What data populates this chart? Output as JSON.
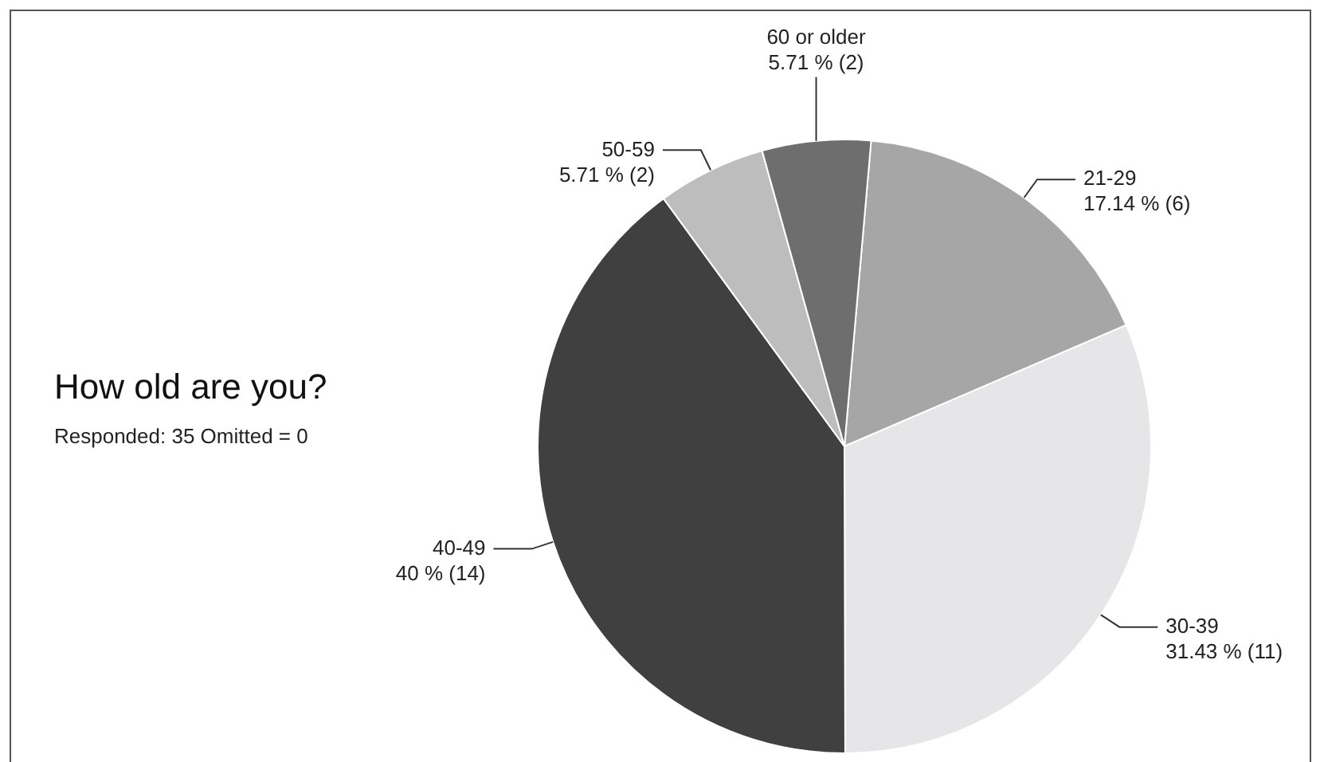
{
  "chart_data": {
    "type": "pie",
    "title": "How old are you?",
    "subtitle": "Responded: 35 Omitted = 0",
    "categories": [
      "21-29",
      "30-39",
      "40-49",
      "50-59",
      "60 or older"
    ],
    "values": [
      6,
      11,
      14,
      2,
      2
    ],
    "value_labels": [
      "17.14 % (6)",
      "31.43 % (11)",
      "40 % (14)",
      "5.71 % (2)",
      "5.71 % (2)"
    ],
    "colors": [
      "#a6a6a6",
      "#e6e6e8",
      "#404040",
      "#bdbdbd",
      "#6e6e6e"
    ]
  }
}
